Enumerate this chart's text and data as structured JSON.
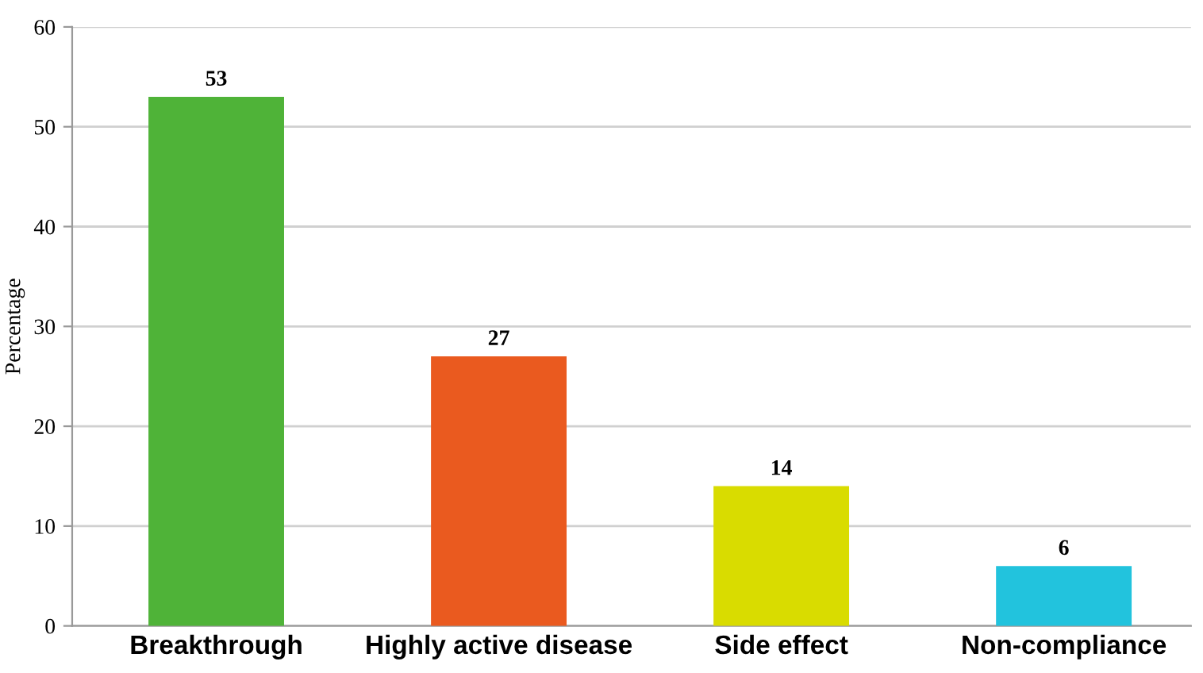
{
  "chart_data": {
    "type": "bar",
    "ylabel": "Percentage",
    "categories": [
      "Breakthrough",
      "Highly active disease",
      "Side effect",
      "Non-compliance"
    ],
    "values": [
      53,
      27,
      14,
      6
    ],
    "colors": [
      "#4fb338",
      "#ea5a1f",
      "#d9dc00",
      "#22c3dd"
    ],
    "ylim": [
      0,
      60
    ],
    "yticks": [
      0,
      10,
      20,
      30,
      40,
      50,
      60
    ],
    "grid": "y",
    "data_labels": true,
    "legend": false
  }
}
